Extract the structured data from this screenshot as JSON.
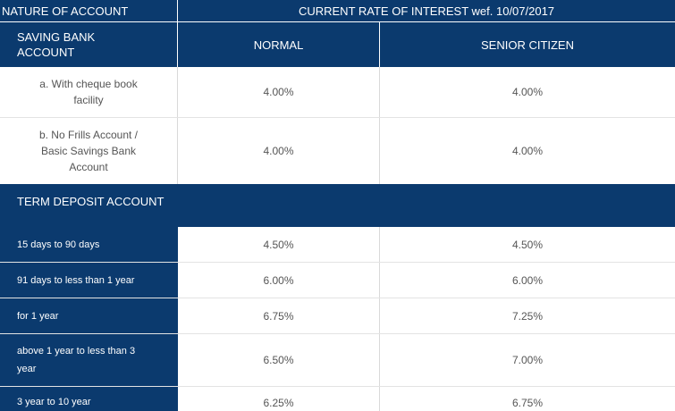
{
  "table": {
    "header": {
      "nature": "NATURE OF ACCOUNT",
      "current_rate": "CURRENT RATE OF INTEREST wef. 10/07/2017"
    },
    "savings_header": {
      "label": "SAVING BANK ACCOUNT",
      "normal": "NORMAL",
      "senior": "SENIOR CITIZEN"
    },
    "savings_rows": [
      {
        "label": "a. With cheque book facility",
        "normal": "4.00%",
        "senior": "4.00%"
      },
      {
        "label": "b. No Frills Account / Basic Savings Bank Account",
        "normal": "4.00%",
        "senior": "4.00%"
      }
    ],
    "term_header": "TERM DEPOSIT ACCOUNT",
    "term_rows": [
      {
        "label": "15 days  to 90 days",
        "normal": "4.50%",
        "senior": "4.50%"
      },
      {
        "label": "91 days  to less than 1 year",
        "normal": "6.00%",
        "senior": "6.00%"
      },
      {
        "label": "for 1 year",
        "normal": "6.75%",
        "senior": "7.25%"
      },
      {
        "label": "above 1 year  to less than  3 year",
        "normal": "6.50%",
        "senior": "7.00%"
      },
      {
        "label": "3 year  to  10 year",
        "normal": "6.25%",
        "senior": "6.75%"
      }
    ]
  },
  "colors": {
    "header_bg": "#0b3a6e",
    "row_bg": "#ffffff",
    "text": "#555555"
  }
}
